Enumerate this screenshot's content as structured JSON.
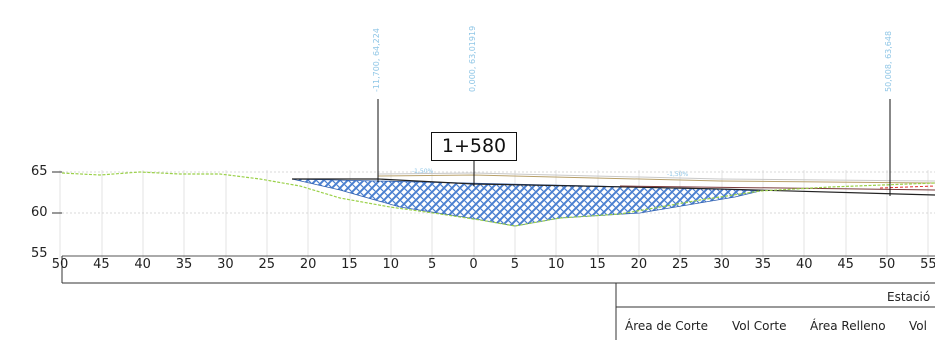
{
  "section": {
    "station": "1+580",
    "offset_labels": [
      {
        "text": "-11,700, 64,224"
      },
      {
        "text": "0,000, 63,01919"
      },
      {
        "text": "50,008, 63,648"
      }
    ],
    "slope_labels": [
      "-1,50%",
      "-1,50%"
    ]
  },
  "axes": {
    "y_ticks": [
      "65",
      "60",
      "55"
    ],
    "x_ticks": [
      "50",
      "45",
      "40",
      "35",
      "30",
      "25",
      "20",
      "15",
      "10",
      "5",
      "0",
      "5",
      "10",
      "15",
      "20",
      "25",
      "30",
      "35",
      "40",
      "45",
      "50",
      "55"
    ]
  },
  "table": {
    "header": "Estació",
    "columns": [
      "Área de Corte",
      "Vol Corte",
      "Área Relleno",
      "Vol"
    ]
  },
  "colors": {
    "ground": "#9bd14a",
    "fill_hatch": "#4a7fd0",
    "design": "#222222",
    "label": "#8fc6e6"
  }
}
